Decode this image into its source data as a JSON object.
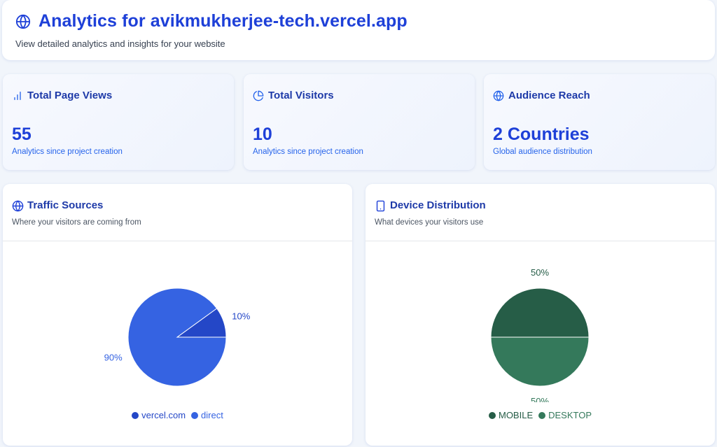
{
  "header": {
    "title": "Analytics for avikmukherjee-tech.vercel.app",
    "subtitle": "View detailed analytics and insights for your website",
    "icon": "globe-icon"
  },
  "stats": [
    {
      "title": "Total Page Views",
      "value": "55",
      "desc": "Analytics since project creation",
      "icon": "bar-chart-icon"
    },
    {
      "title": "Total Visitors",
      "value": "10",
      "desc": "Analytics since project creation",
      "icon": "pie-chart-icon"
    },
    {
      "title": "Audience Reach",
      "value": "2 Countries",
      "desc": "Global audience distribution",
      "icon": "globe-icon"
    }
  ],
  "traffic": {
    "title": "Traffic Sources",
    "desc": "Where your visitors are coming from",
    "icon": "globe-icon"
  },
  "devices": {
    "title": "Device Distribution",
    "desc": "What devices your visitors use",
    "icon": "smartphone-icon"
  },
  "chart_data": [
    {
      "type": "pie",
      "categories": [
        "vercel.com",
        "direct"
      ],
      "values": [
        10,
        90
      ],
      "labels": [
        "10%",
        "90%"
      ],
      "colors": [
        "#2447c7",
        "#3563e2"
      ],
      "legend": "bottom"
    },
    {
      "type": "pie",
      "categories": [
        "MOBILE",
        "DESKTOP"
      ],
      "values": [
        50,
        50
      ],
      "labels": [
        "50%",
        "50%"
      ],
      "colors": [
        "#265d47",
        "#34795b"
      ],
      "legend": "bottom"
    }
  ]
}
